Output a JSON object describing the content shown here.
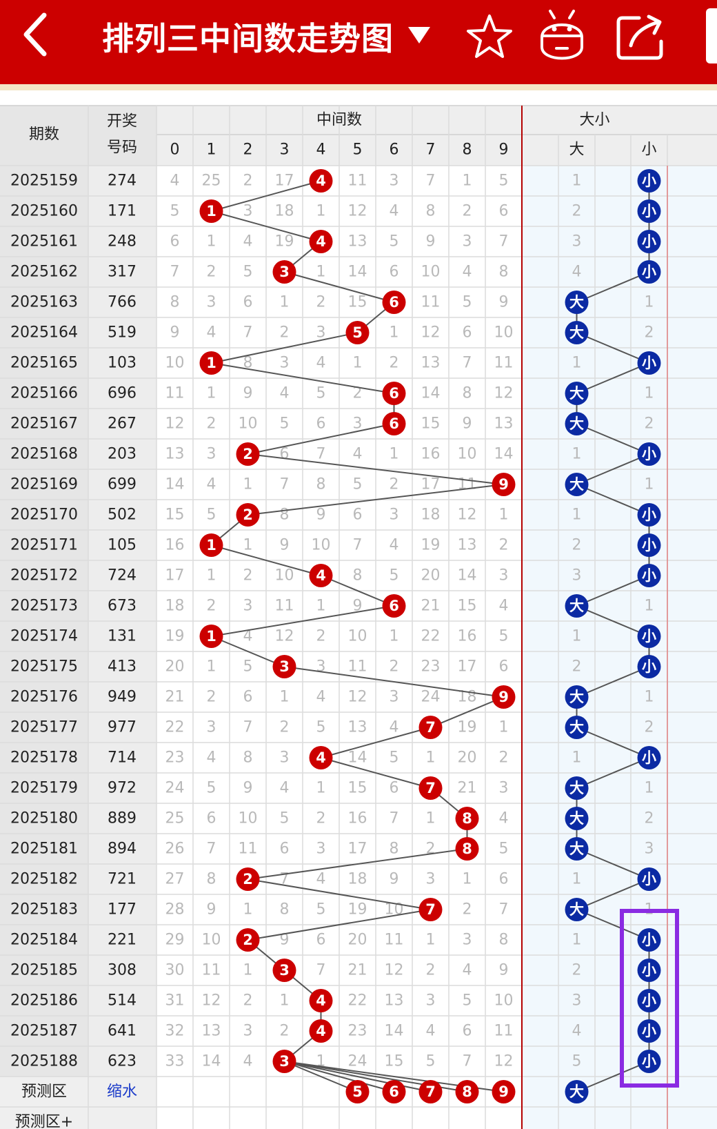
{
  "header": {
    "title": "排列三中间数走势图",
    "back_icon": "chevron-left-icon",
    "dropdown_icon": "triangle-down-icon",
    "star_icon": "star-icon",
    "robot_icon": "android-robot-icon",
    "share_icon": "share-icon",
    "color": "#cc0000"
  },
  "table": {
    "col_issue": "期数",
    "col_draw_line1": "开奖",
    "col_draw_line2": "号码",
    "group_middle": "中间数",
    "group_size": "大小",
    "digits": [
      "0",
      "1",
      "2",
      "3",
      "4",
      "5",
      "6",
      "7",
      "8",
      "9"
    ],
    "size_big": "大",
    "size_small": "小",
    "rows": [
      {
        "issue": "2025159",
        "draw": "274",
        "mid": 4,
        "miss": [
          4,
          25,
          2,
          17,
          "4",
          11,
          3,
          7,
          1,
          5
        ],
        "size": "小",
        "big_miss": "1"
      },
      {
        "issue": "2025160",
        "draw": "171",
        "mid": 1,
        "miss": [
          5,
          "1",
          3,
          18,
          1,
          12,
          4,
          8,
          2,
          6
        ],
        "size": "小",
        "big_miss": "2"
      },
      {
        "issue": "2025161",
        "draw": "248",
        "mid": 4,
        "miss": [
          6,
          1,
          4,
          19,
          "4",
          13,
          5,
          9,
          3,
          7
        ],
        "size": "小",
        "big_miss": "3"
      },
      {
        "issue": "2025162",
        "draw": "317",
        "mid": 3,
        "miss": [
          7,
          2,
          5,
          "3",
          1,
          14,
          6,
          10,
          4,
          8
        ],
        "size": "小",
        "big_miss": "4"
      },
      {
        "issue": "2025163",
        "draw": "766",
        "mid": 6,
        "miss": [
          8,
          3,
          6,
          1,
          2,
          15,
          "6",
          11,
          5,
          9
        ],
        "size": "大",
        "small_miss": "1"
      },
      {
        "issue": "2025164",
        "draw": "519",
        "mid": 5,
        "miss": [
          9,
          4,
          7,
          2,
          3,
          "5",
          1,
          12,
          6,
          10
        ],
        "size": "大",
        "small_miss": "2"
      },
      {
        "issue": "2025165",
        "draw": "103",
        "mid": 1,
        "miss": [
          10,
          "1",
          8,
          3,
          4,
          1,
          2,
          13,
          7,
          11
        ],
        "size": "小",
        "big_miss": "1"
      },
      {
        "issue": "2025166",
        "draw": "696",
        "mid": 6,
        "miss": [
          11,
          1,
          9,
          4,
          5,
          2,
          "6",
          14,
          8,
          12
        ],
        "size": "大",
        "small_miss": "1"
      },
      {
        "issue": "2025167",
        "draw": "267",
        "mid": 6,
        "miss": [
          12,
          2,
          10,
          5,
          6,
          3,
          "6",
          15,
          9,
          13
        ],
        "size": "大",
        "small_miss": "2"
      },
      {
        "issue": "2025168",
        "draw": "203",
        "mid": 2,
        "miss": [
          13,
          3,
          "2",
          6,
          7,
          4,
          1,
          16,
          10,
          14
        ],
        "size": "小",
        "big_miss": "1"
      },
      {
        "issue": "2025169",
        "draw": "699",
        "mid": 9,
        "miss": [
          14,
          4,
          1,
          7,
          8,
          5,
          2,
          17,
          11,
          "9"
        ],
        "size": "大",
        "small_miss": "1"
      },
      {
        "issue": "2025170",
        "draw": "502",
        "mid": 2,
        "miss": [
          15,
          5,
          "2",
          8,
          9,
          6,
          3,
          18,
          12,
          1
        ],
        "size": "小",
        "big_miss": "1"
      },
      {
        "issue": "2025171",
        "draw": "105",
        "mid": 1,
        "miss": [
          16,
          "1",
          1,
          9,
          10,
          7,
          4,
          19,
          13,
          2
        ],
        "size": "小",
        "big_miss": "2"
      },
      {
        "issue": "2025172",
        "draw": "724",
        "mid": 4,
        "miss": [
          17,
          1,
          2,
          10,
          "4",
          8,
          5,
          20,
          14,
          3
        ],
        "size": "小",
        "big_miss": "3"
      },
      {
        "issue": "2025173",
        "draw": "673",
        "mid": 6,
        "miss": [
          18,
          2,
          3,
          11,
          1,
          9,
          "6",
          21,
          15,
          4
        ],
        "size": "大",
        "small_miss": "1"
      },
      {
        "issue": "2025174",
        "draw": "131",
        "mid": 1,
        "miss": [
          19,
          "1",
          4,
          12,
          2,
          10,
          1,
          22,
          16,
          5
        ],
        "size": "小",
        "big_miss": "1"
      },
      {
        "issue": "2025175",
        "draw": "413",
        "mid": 3,
        "miss": [
          20,
          1,
          5,
          "3",
          3,
          11,
          2,
          23,
          17,
          6
        ],
        "size": "小",
        "big_miss": "2"
      },
      {
        "issue": "2025176",
        "draw": "949",
        "mid": 9,
        "miss": [
          21,
          2,
          6,
          1,
          4,
          12,
          3,
          24,
          18,
          "9"
        ],
        "size": "大",
        "small_miss": "1"
      },
      {
        "issue": "2025177",
        "draw": "977",
        "mid": 7,
        "miss": [
          22,
          3,
          7,
          2,
          5,
          13,
          4,
          "7",
          19,
          1
        ],
        "size": "大",
        "small_miss": "2"
      },
      {
        "issue": "2025178",
        "draw": "714",
        "mid": 4,
        "miss": [
          23,
          4,
          8,
          3,
          "4",
          14,
          5,
          1,
          20,
          2
        ],
        "size": "小",
        "big_miss": "1"
      },
      {
        "issue": "2025179",
        "draw": "972",
        "mid": 7,
        "miss": [
          24,
          5,
          9,
          4,
          1,
          15,
          6,
          "7",
          21,
          3
        ],
        "size": "大",
        "small_miss": "1"
      },
      {
        "issue": "2025180",
        "draw": "889",
        "mid": 8,
        "miss": [
          25,
          6,
          10,
          5,
          2,
          16,
          7,
          1,
          "8",
          4
        ],
        "size": "大",
        "small_miss": "2"
      },
      {
        "issue": "2025181",
        "draw": "894",
        "mid": 8,
        "miss": [
          26,
          7,
          11,
          6,
          3,
          17,
          8,
          2,
          "8",
          5
        ],
        "size": "大",
        "small_miss": "3"
      },
      {
        "issue": "2025182",
        "draw": "721",
        "mid": 2,
        "miss": [
          27,
          8,
          "2",
          7,
          4,
          18,
          9,
          3,
          1,
          6
        ],
        "size": "小",
        "big_miss": "1"
      },
      {
        "issue": "2025183",
        "draw": "177",
        "mid": 7,
        "miss": [
          28,
          9,
          1,
          8,
          5,
          19,
          10,
          "7",
          2,
          7
        ],
        "size": "大",
        "small_miss": "1"
      },
      {
        "issue": "2025184",
        "draw": "221",
        "mid": 2,
        "miss": [
          29,
          10,
          "2",
          9,
          6,
          20,
          11,
          1,
          3,
          8
        ],
        "size": "小",
        "big_miss": "1"
      },
      {
        "issue": "2025185",
        "draw": "308",
        "mid": 3,
        "miss": [
          30,
          11,
          1,
          "3",
          7,
          21,
          12,
          2,
          4,
          9
        ],
        "size": "小",
        "big_miss": "2"
      },
      {
        "issue": "2025186",
        "draw": "514",
        "mid": 4,
        "miss": [
          31,
          12,
          2,
          1,
          "4",
          22,
          13,
          3,
          5,
          10
        ],
        "size": "小",
        "big_miss": "3"
      },
      {
        "issue": "2025187",
        "draw": "641",
        "mid": 4,
        "miss": [
          32,
          13,
          3,
          2,
          "4",
          23,
          14,
          4,
          6,
          11
        ],
        "size": "小",
        "big_miss": "4"
      },
      {
        "issue": "2025188",
        "draw": "623",
        "mid": 3,
        "miss": [
          33,
          14,
          4,
          "3",
          1,
          24,
          15,
          5,
          7,
          12
        ],
        "size": "小",
        "big_miss": "5"
      }
    ],
    "predict_label": "预测区",
    "predict_note": "缩水",
    "predict_digits": [
      "5",
      "6",
      "7",
      "8",
      "9"
    ],
    "predict_size": "大",
    "predict_plus_label": "预测区+"
  },
  "colors": {
    "red_ball": "#cc0000",
    "blue_ball": "#0b2aa3",
    "highlight_box": "#8a2be2"
  }
}
